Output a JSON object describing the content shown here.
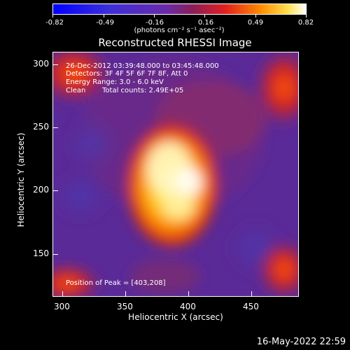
{
  "colorbar": {
    "tick_labels": [
      "-0.82",
      "-0.49",
      "-0.16",
      "0.16",
      "0.49",
      "0.82"
    ],
    "units": "(photons cm⁻² s⁻¹ asec⁻²)"
  },
  "title": "Reconstructed RHESSI Image",
  "annotations": {
    "time_range": "26-Dec-2012 03:39:48.000 to 03:45:48.000",
    "detectors": "Detectors: 3F 4F 5F 6F 7F 8F, Att 0",
    "energy": "Energy Range: 3.0 - 6.0 keV",
    "method": "Clean",
    "counts": "Total counts: 2.49E+05",
    "peak": "Position of Peak = [403,208]"
  },
  "axes": {
    "xlabel": "Heliocentric X (arcsec)",
    "ylabel": "Heliocentric Y (arcsec)",
    "x_ticks": [
      "300",
      "350",
      "400",
      "450"
    ],
    "y_ticks": [
      "300",
      "250",
      "200",
      "150"
    ],
    "xlim": [
      295,
      487
    ],
    "ylim": [
      115,
      308
    ]
  },
  "footer": {
    "date": "16-May-2022 22:59"
  },
  "colors": {
    "background": "#000000",
    "foreground": "#ffffff",
    "image_low": "#5a1f9a",
    "image_high": "#ffffc0"
  }
}
